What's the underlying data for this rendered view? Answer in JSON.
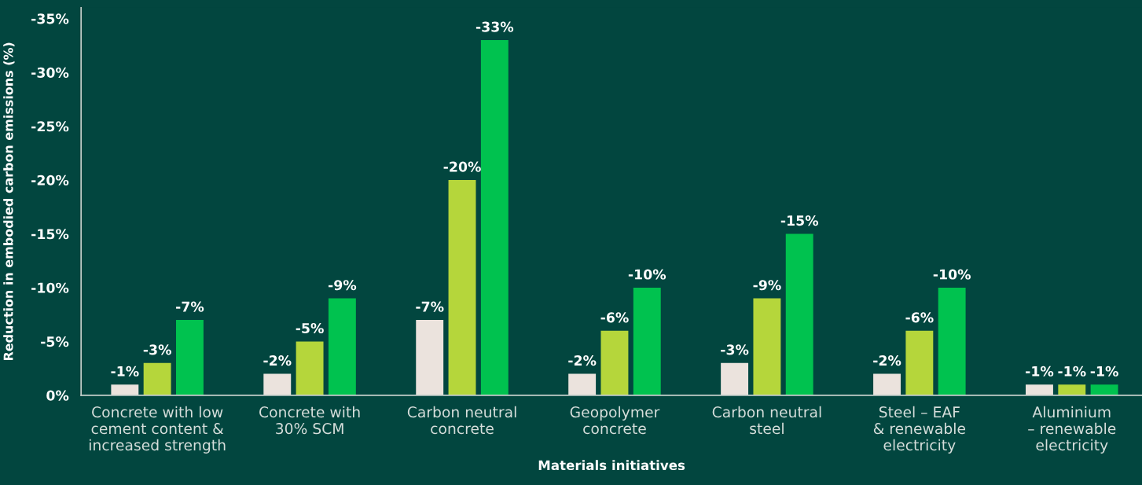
{
  "chart_data": {
    "type": "bar",
    "xlabel": "Materials initiatives",
    "ylabel": "Reduction in embodied carbon emissions (%)",
    "categories": [
      "Concrete with low\ncement content &\nincreased strength",
      "Concrete with\n30% SCM",
      "Carbon neutral\nconcrete",
      "Geopolymer\nconcrete",
      "Carbon neutral\nsteel",
      "Steel – EAF\n& renewable\nelectricity",
      "Aluminium\n– renewable\nelectricity"
    ],
    "series": [
      {
        "color": "#ebe3dd",
        "values": [
          -1,
          -2,
          -7,
          -2,
          -3,
          -2,
          -1
        ],
        "value_labels": [
          "-1%",
          "-2%",
          "-7%",
          "-2%",
          "-3%",
          "-2%",
          "-1%"
        ]
      },
      {
        "color": "#b5d63b",
        "values": [
          -3,
          -5,
          -20,
          -6,
          -9,
          -6,
          -1
        ],
        "value_labels": [
          "-3%",
          "-5%",
          "-20%",
          "-6%",
          "-9%",
          "-6%",
          "-1%"
        ]
      },
      {
        "color": "#00c24f",
        "values": [
          -7,
          -9,
          -33,
          -10,
          -15,
          -10,
          -1
        ],
        "value_labels": [
          "-7%",
          "-9%",
          "-33%",
          "-10%",
          "-15%",
          "-10%",
          "-1%"
        ]
      }
    ],
    "ylim": [
      0,
      -36
    ],
    "yticks": [
      {
        "value": 0,
        "label": "0%"
      },
      {
        "value": -5,
        "label": "-5%"
      },
      {
        "value": -10,
        "label": "-10%"
      },
      {
        "value": -15,
        "label": "-15%"
      },
      {
        "value": -20,
        "label": "-20%"
      },
      {
        "value": -25,
        "label": "-25%"
      },
      {
        "value": -30,
        "label": "-30%"
      },
      {
        "value": -35,
        "label": "-35%"
      }
    ],
    "grid": false
  }
}
